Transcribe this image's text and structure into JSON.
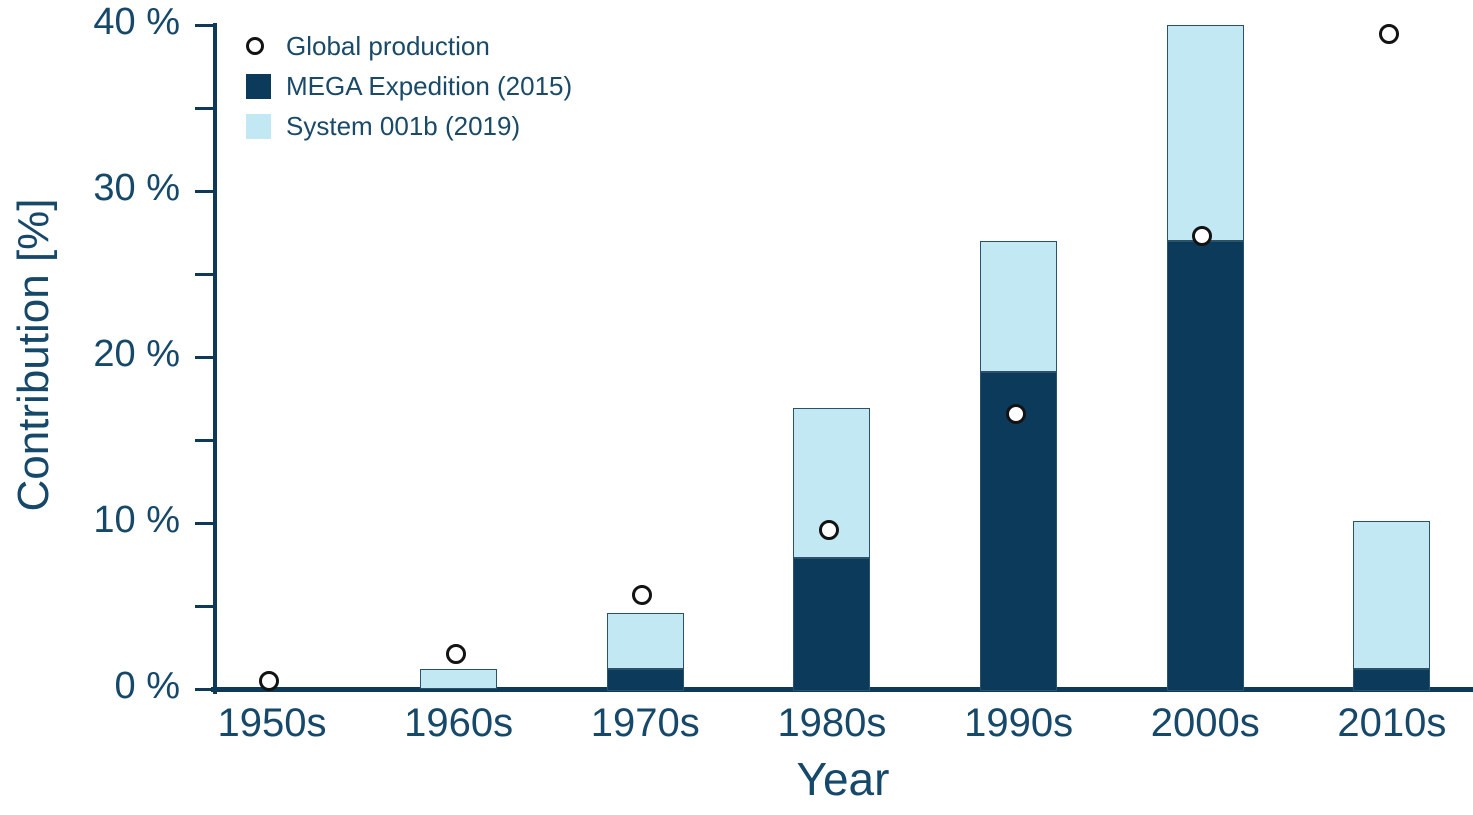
{
  "chart_data": {
    "type": "bar",
    "stacked": true,
    "orientation": "vertical",
    "title": "",
    "xlabel": "Year",
    "ylabel": "Contribution [%]",
    "categories": [
      "1950s",
      "1960s",
      "1970s",
      "1980s",
      "1990s",
      "2000s",
      "2010s"
    ],
    "series": [
      {
        "name": "Global production",
        "type": "scatter",
        "marker": "open-circle",
        "marker_fill": "#ffffff",
        "marker_edge": "#131313",
        "values": [
          0.3,
          1.9,
          5.5,
          9.4,
          16.4,
          27.1,
          39.3
        ]
      },
      {
        "name": "MEGA Expedition (2015)",
        "type": "bar",
        "color": "#0b3a5b",
        "values": [
          0,
          0,
          1.2,
          7.9,
          19.1,
          27.0,
          1.2
        ]
      },
      {
        "name": "System 001b (2019)",
        "type": "bar",
        "color": "#c2e9f3",
        "values": [
          0,
          1.2,
          3.4,
          9.0,
          7.9,
          13.0,
          8.9
        ]
      }
    ],
    "stacked_totals": [
      0,
      1.2,
      4.6,
      16.9,
      27.0,
      40.0,
      10.1
    ],
    "ylim": [
      0,
      40
    ],
    "ytick_major": [
      0,
      10,
      20,
      30,
      40
    ],
    "ytick_labels": [
      "0 %",
      "10 %",
      "20 %",
      "30 %",
      "40 %"
    ],
    "ytick_minor_step": 5,
    "grid": false,
    "legend_position": "top-left",
    "colors": {
      "axis": "#0e3a58",
      "text": "#16486a",
      "bar_dark": "#0b3a5b",
      "bar_light": "#c2e9f3",
      "bar_border": "#2b5268"
    }
  }
}
